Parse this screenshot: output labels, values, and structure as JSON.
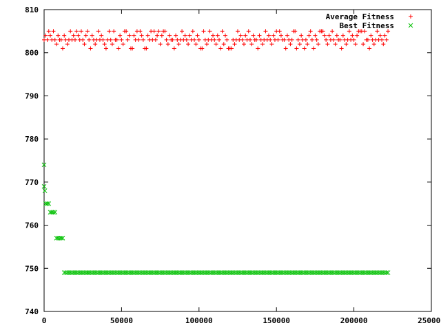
{
  "chart_data": {
    "type": "scatter",
    "title": "",
    "xlabel": "",
    "ylabel": "",
    "xlim": [
      0,
      250000
    ],
    "ylim": [
      740,
      810
    ],
    "x_ticks": [
      0,
      50000,
      100000,
      150000,
      200000,
      250000
    ],
    "y_ticks": [
      740,
      750,
      760,
      770,
      780,
      790,
      800,
      810
    ],
    "x_tick_labels": [
      "0",
      "50000",
      "100000",
      "150000",
      "200000",
      "250000"
    ],
    "y_tick_labels": [
      "740",
      "750",
      "760",
      "770",
      "780",
      "790",
      "800",
      "810"
    ],
    "grid": false,
    "legend_position": "top-right",
    "series": [
      {
        "name": "Average Fitness",
        "marker": "plus",
        "color": "#ff0000",
        "x_range": [
          0,
          222000
        ],
        "typical_value": 803,
        "value_band": [
          801,
          805
        ]
      },
      {
        "name": "Best Fitness",
        "marker": "cross",
        "color": "#00c000",
        "points": [
          [
            0,
            774
          ],
          [
            0,
            769
          ],
          [
            500,
            768
          ],
          [
            1000,
            765
          ],
          [
            2000,
            765
          ],
          [
            3000,
            765
          ],
          [
            4000,
            763
          ],
          [
            5000,
            763
          ],
          [
            6000,
            763
          ],
          [
            7000,
            763
          ],
          [
            8000,
            757
          ],
          [
            9000,
            757
          ],
          [
            10000,
            757
          ],
          [
            11000,
            757
          ],
          [
            12000,
            757
          ]
        ],
        "plateau": {
          "x_range": [
            13000,
            222000
          ],
          "value": 749
        }
      }
    ]
  }
}
